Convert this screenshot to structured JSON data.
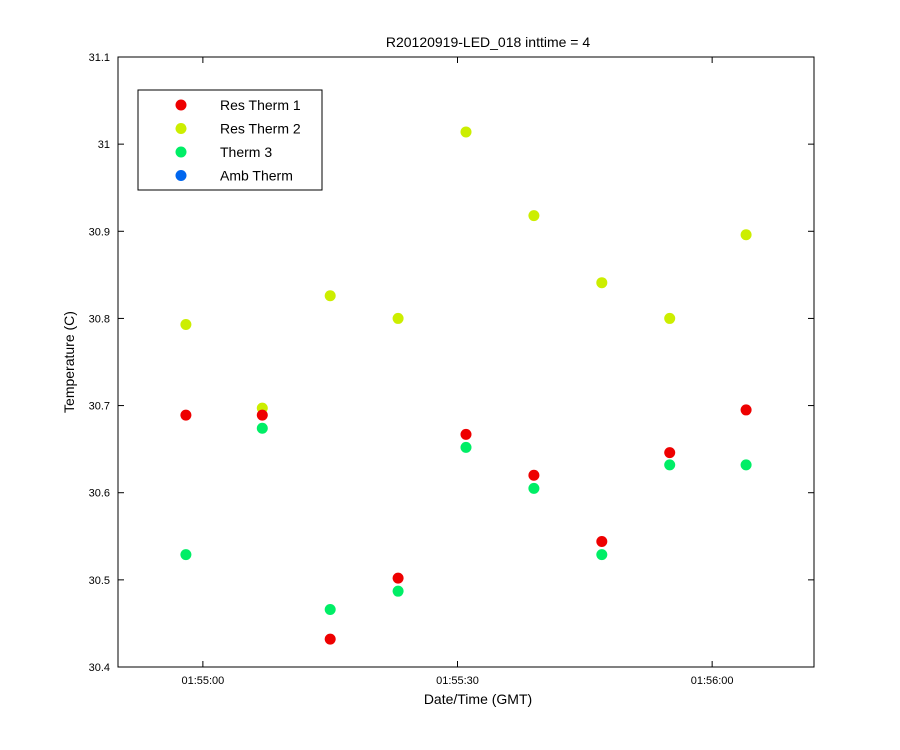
{
  "chart_data": {
    "type": "scatter",
    "title": "R20120919-LED_018 inttime = 4",
    "xlabel": "Date/Time (GMT)",
    "ylabel": "Temperature (C)",
    "xlim": [
      "01:54:50",
      "01:56:12"
    ],
    "ylim": [
      30.4,
      31.1
    ],
    "xticks": [
      "01:55:00",
      "01:55:30",
      "01:56:00"
    ],
    "yticks": [
      "30.4",
      "30.5",
      "30.6",
      "30.7",
      "30.8",
      "30.9",
      "31",
      "31.1"
    ],
    "legend_position": "top-left",
    "x": [
      "01:54:58",
      "01:55:07",
      "01:55:15",
      "01:55:23",
      "01:55:31",
      "01:55:39",
      "01:55:47",
      "01:55:55",
      "01:56:04"
    ],
    "series": [
      {
        "name": "Res Therm 1",
        "color": "#ee0000",
        "values": [
          30.689,
          30.689,
          30.432,
          30.502,
          30.667,
          30.62,
          30.544,
          30.646,
          30.695
        ]
      },
      {
        "name": "Res Therm 2",
        "color": "#ccee00",
        "values": [
          30.793,
          30.697,
          30.826,
          30.8,
          31.014,
          30.918,
          30.841,
          30.8,
          30.896
        ]
      },
      {
        "name": "Therm 3",
        "color": "#00ee66",
        "values": [
          30.529,
          30.674,
          30.466,
          30.487,
          30.652,
          30.605,
          30.529,
          30.632,
          30.632
        ]
      },
      {
        "name": "Amb Therm",
        "color": "#0066ee",
        "values": []
      }
    ]
  }
}
